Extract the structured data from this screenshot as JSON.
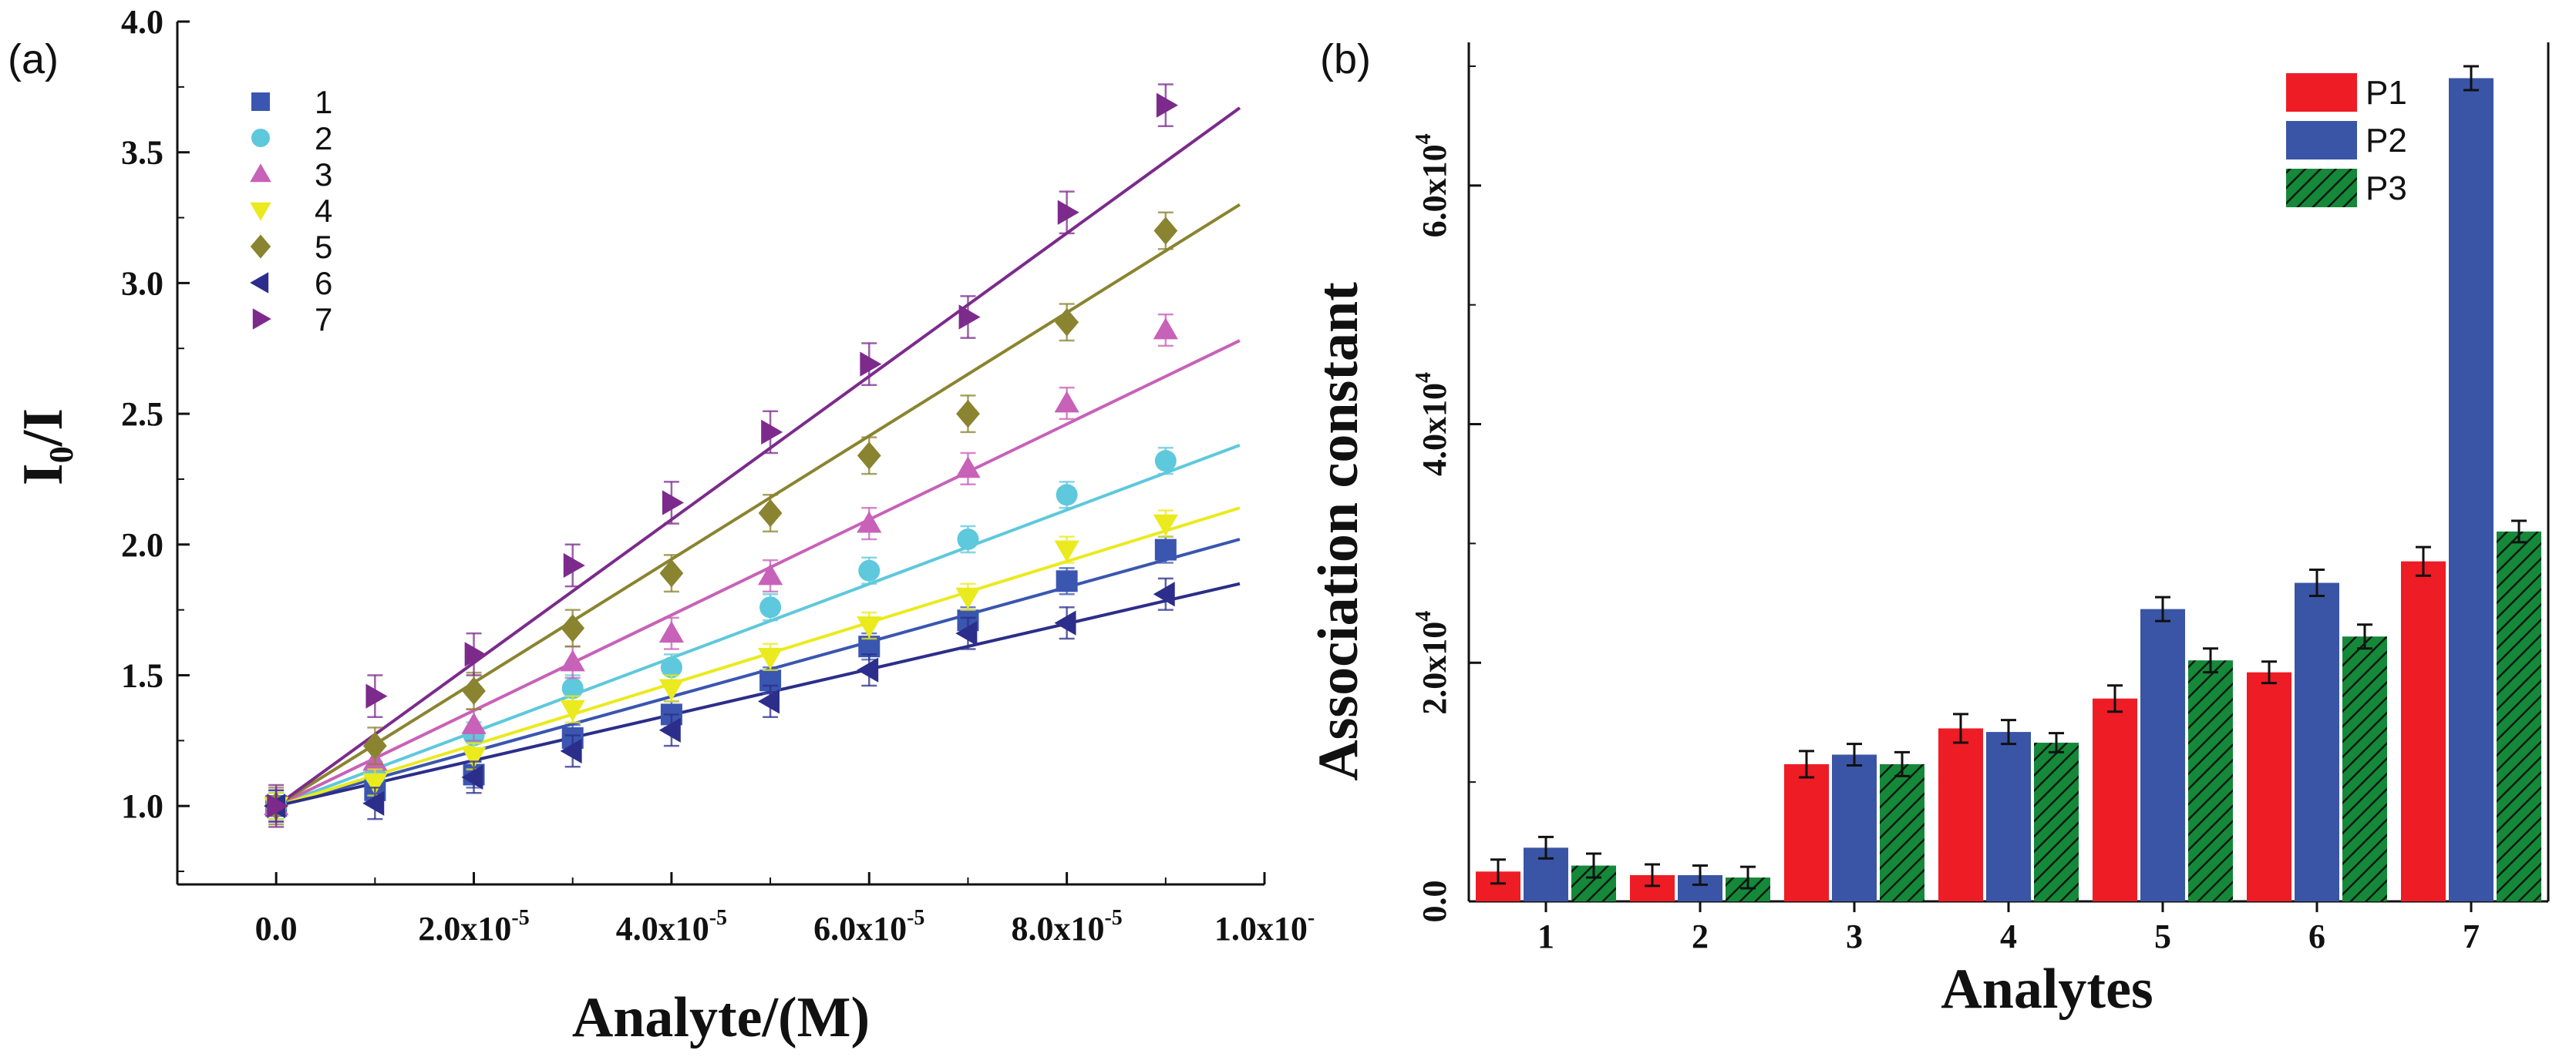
{
  "chart_data": [
    {
      "panel": "(a)",
      "type": "scatter",
      "xlabel": "Analyte/(M)",
      "ylabel_main": "I",
      "ylabel_sub": "0",
      "ylabel_tail": "/I",
      "xlim": [
        -1e-05,
        0.0001
      ],
      "ylim": [
        0.7,
        4.0
      ],
      "x_tick_values": [
        0,
        2e-05,
        4e-05,
        6e-05,
        8e-05,
        0.0001
      ],
      "x_tick_labels": [
        {
          "base": "0.0",
          "exp": ""
        },
        {
          "base": "2.0x10",
          "exp": "-5"
        },
        {
          "base": "4.0x10",
          "exp": "-5"
        },
        {
          "base": "6.0x10",
          "exp": "-5"
        },
        {
          "base": "8.0x10",
          "exp": "-5"
        },
        {
          "base": "1.0x10",
          "exp": "-"
        }
      ],
      "y_ticks": [
        1.0,
        1.5,
        2.0,
        2.5,
        3.0,
        3.5,
        4.0
      ],
      "y_tick_labels": [
        "1.0",
        "1.5",
        "2.0",
        "2.5",
        "3.0",
        "3.5",
        "4.0"
      ],
      "x": [
        0,
        1e-05,
        2e-05,
        3e-05,
        4e-05,
        5e-05,
        6e-05,
        7e-05,
        8e-05,
        9e-05
      ],
      "fit_x_end": 9.75e-05,
      "series": [
        {
          "name": "1",
          "marker": "square",
          "color": "#3a56b0",
          "values": [
            1.0,
            1.06,
            1.12,
            1.26,
            1.35,
            1.48,
            1.61,
            1.71,
            1.86,
            1.98
          ],
          "error": 0.05,
          "fit": [
            1.0,
            2.02
          ]
        },
        {
          "name": "2",
          "marker": "circle",
          "color": "#5ec8dc",
          "values": [
            1.0,
            1.12,
            1.27,
            1.45,
            1.53,
            1.76,
            1.9,
            2.02,
            2.19,
            2.32
          ],
          "error": 0.05,
          "fit": [
            1.0,
            2.38
          ]
        },
        {
          "name": "3",
          "marker": "triangle-up",
          "color": "#c861b8",
          "values": [
            1.0,
            1.17,
            1.31,
            1.55,
            1.66,
            1.88,
            2.08,
            2.29,
            2.54,
            2.82
          ],
          "error": 0.06,
          "fit": [
            1.0,
            2.78
          ]
        },
        {
          "name": "4",
          "marker": "triangle-down",
          "color": "#eaea1e",
          "values": [
            1.0,
            1.09,
            1.19,
            1.37,
            1.45,
            1.57,
            1.69,
            1.8,
            1.98,
            2.08
          ],
          "error": 0.05,
          "fit": [
            1.0,
            2.14
          ]
        },
        {
          "name": "5",
          "marker": "diamond",
          "color": "#8a8430",
          "values": [
            1.0,
            1.23,
            1.44,
            1.68,
            1.89,
            2.12,
            2.34,
            2.5,
            2.85,
            3.2
          ],
          "error": 0.07,
          "fit": [
            1.0,
            3.3
          ]
        },
        {
          "name": "6",
          "marker": "triangle-left",
          "color": "#2b2e8a",
          "values": [
            1.0,
            1.01,
            1.11,
            1.21,
            1.29,
            1.4,
            1.52,
            1.66,
            1.7,
            1.81
          ],
          "error": 0.06,
          "fit": [
            1.0,
            1.85
          ]
        },
        {
          "name": "7",
          "marker": "triangle-right",
          "color": "#7c2a8c",
          "values": [
            1.0,
            1.42,
            1.58,
            1.92,
            2.16,
            2.43,
            2.69,
            2.87,
            3.27,
            3.68
          ],
          "error": 0.08,
          "fit": [
            1.0,
            3.67
          ]
        }
      ]
    },
    {
      "panel": "(b)",
      "type": "bar",
      "xlabel": "Analytes",
      "ylabel": "Association constant",
      "categories": [
        "1",
        "2",
        "3",
        "4",
        "5",
        "6",
        "7"
      ],
      "ylim": [
        0,
        72000
      ],
      "y_ticks": [
        0,
        20000,
        40000,
        60000
      ],
      "y_tick_labels": [
        {
          "base": "0.0",
          "exp": ""
        },
        {
          "base": "2.0x10",
          "exp": "4"
        },
        {
          "base": "4.0x10",
          "exp": "4"
        },
        {
          "base": "6.0x10",
          "exp": "4"
        }
      ],
      "series": [
        {
          "name": "P1",
          "color": "#ee1c25",
          "pattern": "solid",
          "values": [
            2500,
            2200,
            11500,
            14500,
            17000,
            19200,
            28500
          ],
          "errors": [
            1000,
            900,
            1100,
            1200,
            1100,
            900,
            1200
          ]
        },
        {
          "name": "P2",
          "color": "#3a55a6",
          "pattern": "solid",
          "values": [
            4500,
            2200,
            12300,
            14200,
            24500,
            26700,
            69000
          ],
          "errors": [
            900,
            800,
            900,
            1000,
            1000,
            1100,
            1000
          ]
        },
        {
          "name": "P3",
          "color": "#15883a",
          "pattern": "hatched",
          "values": [
            3000,
            2000,
            11500,
            13300,
            20200,
            22200,
            31000
          ],
          "errors": [
            1000,
            900,
            1000,
            800,
            1000,
            1000,
            900
          ]
        }
      ]
    }
  ]
}
